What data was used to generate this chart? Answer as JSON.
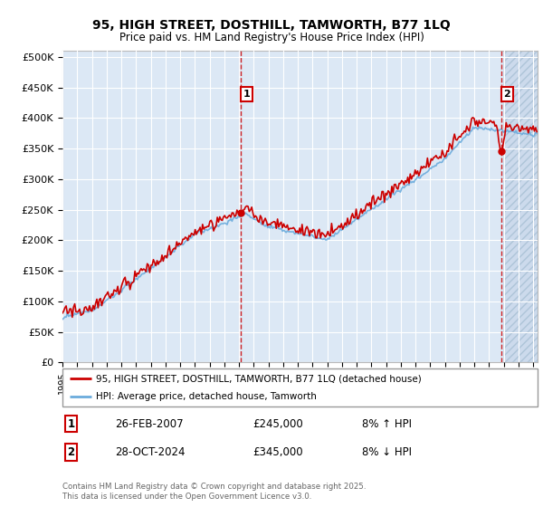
{
  "title_line1": "95, HIGH STREET, DOSTHILL, TAMWORTH, B77 1LQ",
  "title_line2": "Price paid vs. HM Land Registry's House Price Index (HPI)",
  "ylabel_ticks": [
    "£0",
    "£50K",
    "£100K",
    "£150K",
    "£200K",
    "£250K",
    "£300K",
    "£350K",
    "£400K",
    "£450K",
    "£500K"
  ],
  "ytick_values": [
    0,
    50000,
    100000,
    150000,
    200000,
    250000,
    300000,
    350000,
    400000,
    450000,
    500000
  ],
  "ylim": [
    0,
    510000
  ],
  "xlim_start": 1995.0,
  "xlim_end": 2027.3,
  "xticks": [
    1995,
    1996,
    1997,
    1998,
    1999,
    2000,
    2001,
    2002,
    2003,
    2004,
    2005,
    2006,
    2007,
    2008,
    2009,
    2010,
    2011,
    2012,
    2013,
    2014,
    2015,
    2016,
    2017,
    2018,
    2019,
    2020,
    2021,
    2022,
    2023,
    2024,
    2025,
    2026,
    2027
  ],
  "hpi_color": "#6aabdc",
  "price_color": "#cc0000",
  "vline_color": "#cc0000",
  "bg_color": "#dce8f5",
  "grid_color": "#ffffff",
  "future_start": 2025.0,
  "sale1_x": 2007.15,
  "sale1_y": 245000,
  "sale2_x": 2024.83,
  "sale2_y": 345000,
  "annotation1_label": "1",
  "annotation2_label": "2",
  "legend_line1": "95, HIGH STREET, DOSTHILL, TAMWORTH, B77 1LQ (detached house)",
  "legend_line2": "HPI: Average price, detached house, Tamworth",
  "note1_label": "1",
  "note1_date": "26-FEB-2007",
  "note1_price": "£245,000",
  "note1_info": "8% ↑ HPI",
  "note2_label": "2",
  "note2_date": "28-OCT-2024",
  "note2_price": "£345,000",
  "note2_info": "8% ↓ HPI",
  "copyright_text": "Contains HM Land Registry data © Crown copyright and database right 2025.\nThis data is licensed under the Open Government Licence v3.0."
}
